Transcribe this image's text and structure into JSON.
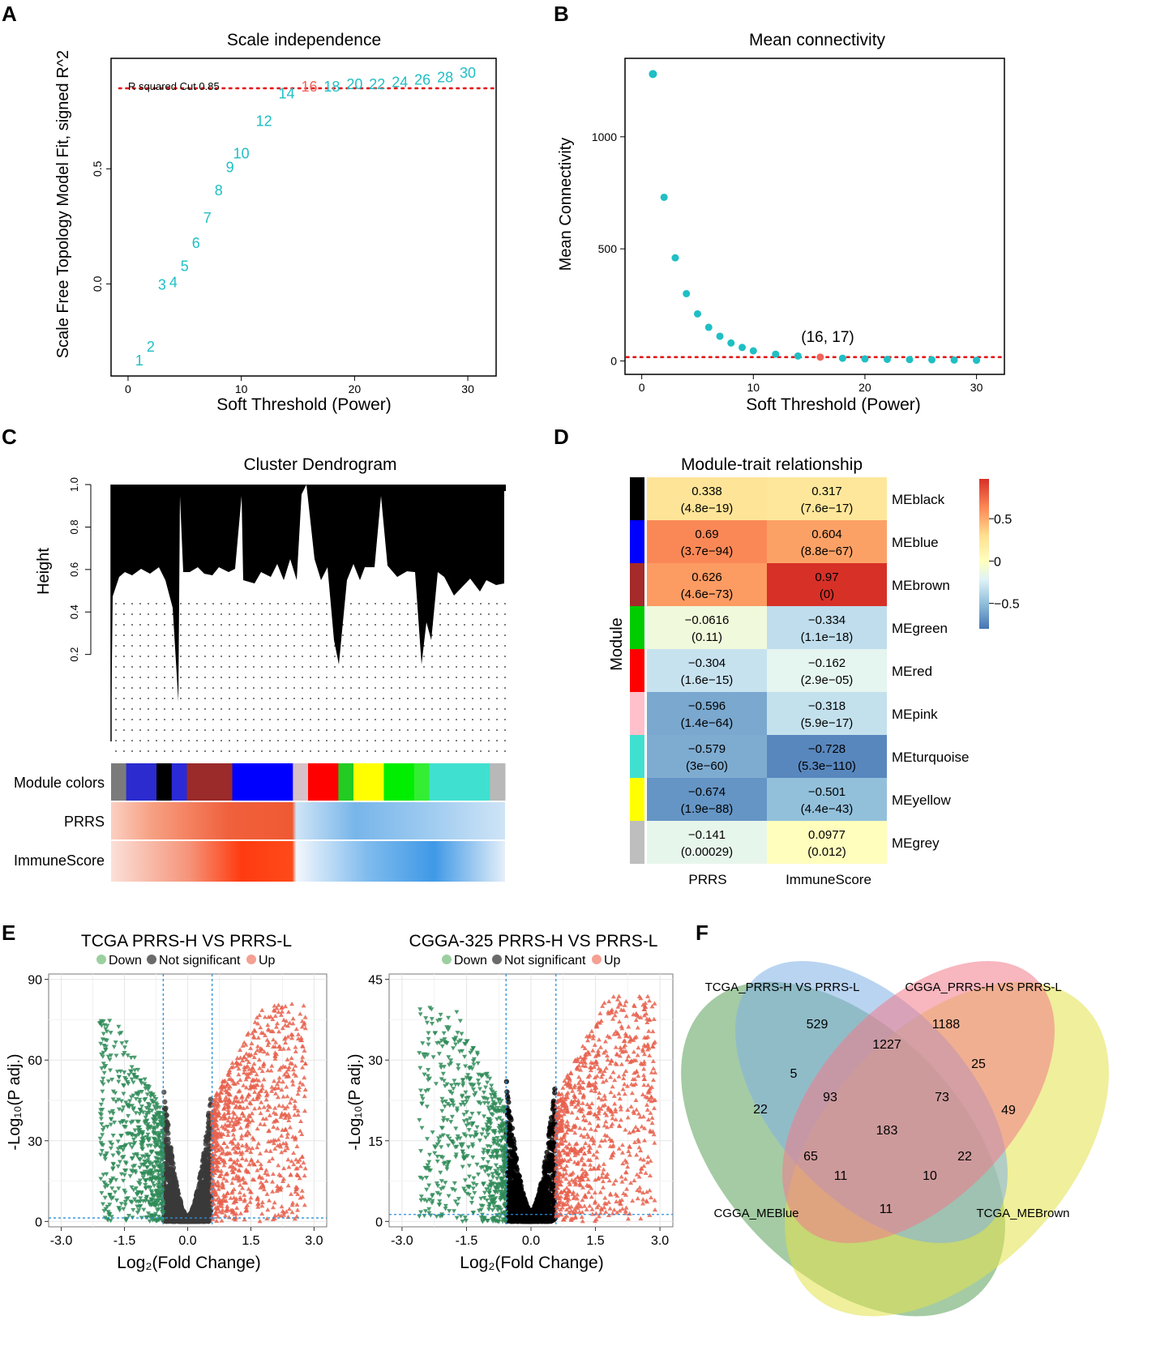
{
  "chart_data": [
    {
      "panel": "A",
      "type": "scatter",
      "title": "Scale independence",
      "xlabel": "Soft Threshold (Power)",
      "ylabel": "Scale Free Topology Model Fit, signed R^2",
      "xlim": [
        -1.5,
        32.5
      ],
      "ylim": [
        -0.4,
        0.98
      ],
      "xticks": [
        0,
        10,
        20,
        30
      ],
      "yticks": [
        0.0,
        0.5
      ],
      "ytick_labels": [
        "0.0",
        "0.5"
      ],
      "cutoff": 0.85,
      "cutoff_label": "R squared Cut 0.85",
      "highlight": 16,
      "x": [
        1,
        2,
        3,
        4,
        5,
        6,
        7,
        8,
        9,
        10,
        12,
        14,
        16,
        18,
        20,
        22,
        24,
        26,
        28,
        30
      ],
      "y": [
        -0.33,
        -0.27,
        0.0,
        0.01,
        0.08,
        0.18,
        0.29,
        0.41,
        0.51,
        0.57,
        0.71,
        0.83,
        0.86,
        0.86,
        0.87,
        0.87,
        0.88,
        0.89,
        0.9,
        0.92
      ],
      "point_color": "#1fbfc4",
      "highlight_color": "#f0645a",
      "cutoff_color": "#e31a1c"
    },
    {
      "panel": "B",
      "type": "scatter",
      "title": "Mean connectivity",
      "xlabel": "Soft Threshold (Power)",
      "ylabel": "Mean Connectivity",
      "xlim": [
        -1.5,
        32.5
      ],
      "ylim": [
        -60,
        1350
      ],
      "xticks": [
        0,
        10,
        20,
        30
      ],
      "yticks": [
        0,
        500,
        1000
      ],
      "cutoff": 17,
      "highlight": 16,
      "annotation": "(16, 17)",
      "x": [
        1,
        2,
        3,
        4,
        5,
        6,
        7,
        8,
        9,
        10,
        12,
        14,
        16,
        18,
        20,
        22,
        24,
        26,
        28,
        30
      ],
      "y": [
        1280,
        730,
        460,
        300,
        210,
        150,
        110,
        80,
        60,
        45,
        30,
        22,
        17,
        12,
        9,
        7,
        6,
        5,
        4,
        3
      ],
      "point_color": "#1fbfc4",
      "highlight_color": "#f0645a",
      "cutoff_color": "#e31a1c"
    },
    {
      "panel": "C",
      "type": "dendrogram",
      "title": "Cluster Dendrogram",
      "ylabel": "Height",
      "ylim": [
        0.0,
        1.0
      ],
      "yticks": [
        0.2,
        0.4,
        0.6,
        0.8,
        1.0
      ],
      "ytick_labels": [
        "0.2",
        "0.4",
        "0.6",
        "0.8",
        "1.0"
      ],
      "row_labels": [
        "Module colors",
        "PRRS",
        "ImmuneScore"
      ],
      "module_color_segments": [
        {
          "color": "#7b7b7b",
          "weight": 1
        },
        {
          "color": "#2b2bd0",
          "weight": 2
        },
        {
          "color": "#000000",
          "weight": 1
        },
        {
          "color": "#2a2ad6",
          "weight": 1
        },
        {
          "color": "#9b2a2a",
          "weight": 3
        },
        {
          "color": "#0000ff",
          "weight": 4
        },
        {
          "color": "#d7c0c8",
          "weight": 1
        },
        {
          "color": "#ff0000",
          "weight": 2
        },
        {
          "color": "#22cc22",
          "weight": 1
        },
        {
          "color": "#ffff00",
          "weight": 2
        },
        {
          "color": "#00ee00",
          "weight": 2
        },
        {
          "color": "#33ee33",
          "weight": 1
        },
        {
          "color": "#40e0d0",
          "weight": 4
        },
        {
          "color": "#b8b8b8",
          "weight": 1
        }
      ]
    },
    {
      "panel": "D",
      "type": "heatmap",
      "title": "Module-trait relationship",
      "ylabel": "Module",
      "columns": [
        "PRRS",
        "ImmuneScore"
      ],
      "rows": [
        {
          "name": "MEblack",
          "color": "#000000",
          "corr": [
            0.338,
            0.317
          ],
          "labels": [
            "0.338",
            "0.317"
          ],
          "p": [
            "(4.8e−19)",
            "(7.6e−17)"
          ]
        },
        {
          "name": "MEblue",
          "color": "#0000ff",
          "corr": [
            0.69,
            0.604
          ],
          "labels": [
            "0.69",
            "0.604"
          ],
          "p": [
            "(3.7e−94)",
            "(8.8e−67)"
          ]
        },
        {
          "name": "MEbrown",
          "color": "#a52a2a",
          "corr": [
            0.626,
            0.97
          ],
          "labels": [
            "0.626",
            "0.97"
          ],
          "p": [
            "(4.6e−73)",
            "(0)"
          ]
        },
        {
          "name": "MEgreen",
          "color": "#00cc00",
          "corr": [
            -0.0616,
            -0.334
          ],
          "labels": [
            "−0.0616",
            "−0.334"
          ],
          "p": [
            "(0.11)",
            "(1.1e−18)"
          ]
        },
        {
          "name": "MEred",
          "color": "#ff0000",
          "corr": [
            -0.304,
            -0.162
          ],
          "labels": [
            "−0.304",
            "−0.162"
          ],
          "p": [
            "(1.6e−15)",
            "(2.9e−05)"
          ]
        },
        {
          "name": "MEpink",
          "color": "#ffc0cb",
          "corr": [
            -0.596,
            -0.318
          ],
          "labels": [
            "−0.596",
            "−0.318"
          ],
          "p": [
            "(1.4e−64)",
            "(5.9e−17)"
          ]
        },
        {
          "name": "MEturquoise",
          "color": "#40e0d0",
          "corr": [
            -0.579,
            -0.728
          ],
          "labels": [
            "−0.579",
            "−0.728"
          ],
          "p": [
            "(3e−60)",
            "(5.3e−110)"
          ]
        },
        {
          "name": "MEyellow",
          "color": "#ffff00",
          "corr": [
            -0.674,
            -0.501
          ],
          "labels": [
            "−0.674",
            "−0.501"
          ],
          "p": [
            "(1.9e−88)",
            "(4.4e−43)"
          ]
        },
        {
          "name": "MEgrey",
          "color": "#bebebe",
          "corr": [
            -0.141,
            0.0977
          ],
          "labels": [
            "−0.141",
            "0.0977"
          ],
          "p": [
            "(0.00029)",
            "(0.012)"
          ]
        }
      ],
      "colorbar_ticks": [
        0.5,
        0,
        -0.5
      ],
      "colorbar_labels": [
        "0.5",
        "0",
        "−0.5"
      ],
      "colorbar_range": [
        -0.8,
        0.97
      ],
      "colorbar_colors": [
        "#4575b4",
        "#91bfdb",
        "#e0f3f8",
        "#ffffbf",
        "#fee090",
        "#fc8d59",
        "#d73027"
      ]
    },
    {
      "panel": "E1",
      "type": "scatter",
      "title": "TCGA PRRS-H VS PRRS-L",
      "xlabel": "Log₂(Fold Change)",
      "ylabel": "-Log₁₀(P adj.)",
      "xlim": [
        -3.3,
        3.3
      ],
      "ylim": [
        -2,
        92
      ],
      "xticks": [
        -3.0,
        -1.5,
        0.0,
        1.5,
        3.0
      ],
      "xtick_labels": [
        "-3.0",
        "-1.5",
        "0.0",
        "1.5",
        "3.0"
      ],
      "yticks": [
        0,
        30,
        60,
        90
      ],
      "ytick_labels": [
        "0",
        "30",
        "60",
        "90"
      ],
      "fc_cutoffs": [
        -0.58,
        0.58
      ],
      "p_cutoff": 1.3,
      "legend": [
        "Down",
        "Not significant",
        "Up"
      ],
      "colors": {
        "down": "#2e8b57",
        "ns": "#3a3a3a",
        "up": "#e8604c",
        "cutoff": "#2a8fd6"
      },
      "summary_extremes": {
        "down_min_fc": -2.1,
        "up_max_fc": 2.8,
        "max_neglogp": 81
      }
    },
    {
      "panel": "E2",
      "type": "scatter",
      "title": "CGGA-325 PRRS-H VS PRRS-L",
      "xlabel": "Log₂(Fold Change)",
      "ylabel": "-Log₁₀(P adj.)",
      "xlim": [
        -3.3,
        3.3
      ],
      "ylim": [
        -1,
        46
      ],
      "xticks": [
        -3.0,
        -1.5,
        0.0,
        1.5,
        3.0
      ],
      "xtick_labels": [
        "-3.0",
        "-1.5",
        "0.0",
        "1.5",
        "3.0"
      ],
      "yticks": [
        0,
        15,
        30,
        45
      ],
      "ytick_labels": [
        "0",
        "15",
        "30",
        "45"
      ],
      "fc_cutoffs": [
        -0.58,
        0.58
      ],
      "p_cutoff": 1.3,
      "legend": [
        "Down",
        "Not significant",
        "Up"
      ],
      "colors": {
        "down": "#2e8b57",
        "ns": "#000000",
        "up": "#e8604c",
        "cutoff": "#2a8fd6"
      },
      "summary_extremes": {
        "down_min_fc": -2.6,
        "up_max_fc": 2.9,
        "max_neglogp": 42
      }
    },
    {
      "panel": "F",
      "type": "venn",
      "sets": [
        "TCGA_PRRS-H VS PRRS-L",
        "CGGA_PRRS-H VS PRRS-L",
        "CGGA_MEBlue",
        "TCGA_MEBrown"
      ],
      "set_colors": [
        "#7fb0e6",
        "#f27a8a",
        "#5aa05a",
        "#e2e24a"
      ],
      "regions": [
        {
          "sets": "A",
          "count": 529
        },
        {
          "sets": "B",
          "count": 1188
        },
        {
          "sets": "AB",
          "count": 1227
        },
        {
          "sets": "AC",
          "count": 5
        },
        {
          "sets": "BD",
          "count": 25
        },
        {
          "sets": "C",
          "count": 22
        },
        {
          "sets": "ABC",
          "count": 93
        },
        {
          "sets": "ABD",
          "count": 73
        },
        {
          "sets": "D",
          "count": 49
        },
        {
          "sets": "ABCD",
          "count": 183
        },
        {
          "sets": "BC",
          "count": 65
        },
        {
          "sets": "AD",
          "count": 22
        },
        {
          "sets": "BCD",
          "count": 11
        },
        {
          "sets": "ACD",
          "count": 10
        },
        {
          "sets": "CD",
          "count": 11
        }
      ]
    }
  ],
  "panel_labels": [
    "A",
    "B",
    "C",
    "D",
    "E",
    "F"
  ]
}
